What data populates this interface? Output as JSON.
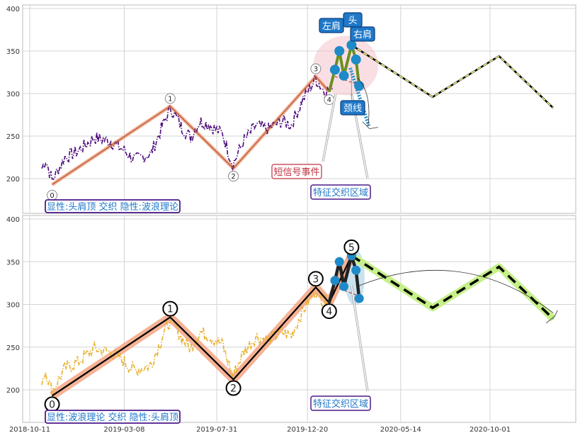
{
  "chart_data": [
    {
      "type": "line",
      "panel": "top",
      "title": "",
      "ylim": [
        165,
        405
      ],
      "yticks": [
        200,
        250,
        300,
        350,
        400
      ],
      "grid": true,
      "x_dates": [
        "2018-10-11",
        "2019-03-08",
        "2019-07-31",
        "2019-12-20",
        "2020-05-14",
        "2020-10-01"
      ],
      "x_tick_labels_shown": false,
      "price_series": {
        "color": "#4b0a7a",
        "style": "dash-dot",
        "anchors": [
          [
            "2018-10-30",
            212
          ],
          [
            "2018-11-05",
            222
          ],
          [
            "2018-11-15",
            198
          ],
          [
            "2018-12-05",
            225
          ],
          [
            "2018-12-25",
            232
          ],
          [
            "2019-01-20",
            248
          ],
          [
            "2019-02-15",
            244
          ],
          [
            "2019-03-10",
            232
          ],
          [
            "2019-03-25",
            222
          ],
          [
            "2019-04-20",
            230
          ],
          [
            "2019-05-05",
            258
          ],
          [
            "2019-05-20",
            283
          ],
          [
            "2019-06-05",
            262
          ],
          [
            "2019-06-20",
            248
          ],
          [
            "2019-07-05",
            268
          ],
          [
            "2019-07-20",
            263
          ],
          [
            "2019-08-10",
            252
          ],
          [
            "2019-08-25",
            216
          ],
          [
            "2019-09-10",
            243
          ],
          [
            "2019-09-30",
            262
          ],
          [
            "2019-10-20",
            258
          ],
          [
            "2019-11-10",
            268
          ],
          [
            "2019-11-25",
            263
          ],
          [
            "2019-12-10",
            288
          ],
          [
            "2020-01-02",
            318
          ],
          [
            "2020-01-15",
            303
          ],
          [
            "2020-01-28",
            305
          ]
        ]
      },
      "wave_series": {
        "color": "#b05a3c",
        "band_color": "#f4a582",
        "points": [
          {
            "date": "2018-11-15",
            "value": 193,
            "label": "0"
          },
          {
            "date": "2019-05-19",
            "value": 285,
            "label": "1"
          },
          {
            "date": "2019-08-26",
            "value": 212,
            "label": "2"
          },
          {
            "date": "2020-01-02",
            "value": 320,
            "label": "3"
          },
          {
            "date": "2020-01-23",
            "value": 302,
            "label": "4"
          }
        ]
      },
      "pattern_dots": [
        [
          "2020-02-01",
          328
        ],
        [
          "2020-02-08",
          350
        ],
        [
          "2020-02-15",
          321
        ],
        [
          "2020-02-27",
          357
        ],
        [
          "2020-03-05",
          340
        ],
        [
          "2020-03-10",
          309
        ]
      ],
      "pattern_line_color": "#6b8e23",
      "pattern_dot_color": "#1f8ac8",
      "pattern_highlight_color": "#f2b8c0",
      "forecast": {
        "color": "#ffff88",
        "style": "dashed",
        "points": [
          [
            "2020-02-27",
            357
          ],
          [
            "2020-07-03",
            296
          ],
          [
            "2020-10-15",
            344
          ],
          [
            "2021-01-08",
            283
          ]
        ]
      },
      "neckline_arrow": {
        "color": "#1f8ac8",
        "from": [
          "2020-02-25",
          330
        ],
        "to": [
          "2020-03-25",
          262
        ]
      },
      "annotations": {
        "left_shoulder": "左肩",
        "head": "头",
        "right_shoulder": "右肩",
        "neckline": "颈线",
        "short_signal": "短信号事件",
        "feature_zone": "特征交织区域",
        "legend_box": "显性:头肩顶 交织 隐性:波浪理论"
      }
    },
    {
      "type": "line",
      "panel": "bottom",
      "title": "",
      "ylim": [
        160,
        405
      ],
      "yticks": [
        200,
        250,
        300,
        350,
        400
      ],
      "grid": true,
      "x_dates": [
        "2018-10-11",
        "2019-03-08",
        "2019-07-31",
        "2019-12-20",
        "2020-05-14",
        "2020-10-01"
      ],
      "x_tick_labels_shown": true,
      "price_series": {
        "color": "#e8b02c",
        "style": "dash-dot",
        "anchors": [
          [
            "2018-10-30",
            212
          ],
          [
            "2018-11-05",
            222
          ],
          [
            "2018-11-15",
            198
          ],
          [
            "2018-12-05",
            225
          ],
          [
            "2018-12-25",
            232
          ],
          [
            "2019-01-20",
            248
          ],
          [
            "2019-02-15",
            244
          ],
          [
            "2019-03-10",
            232
          ],
          [
            "2019-03-25",
            222
          ],
          [
            "2019-04-20",
            230
          ],
          [
            "2019-05-05",
            258
          ],
          [
            "2019-05-20",
            283
          ],
          [
            "2019-06-05",
            262
          ],
          [
            "2019-06-20",
            248
          ],
          [
            "2019-07-05",
            268
          ],
          [
            "2019-07-20",
            263
          ],
          [
            "2019-08-10",
            252
          ],
          [
            "2019-08-25",
            216
          ],
          [
            "2019-09-10",
            243
          ],
          [
            "2019-09-30",
            262
          ],
          [
            "2019-10-20",
            258
          ],
          [
            "2019-11-10",
            268
          ],
          [
            "2019-11-25",
            263
          ],
          [
            "2019-12-10",
            288
          ],
          [
            "2020-01-02",
            318
          ],
          [
            "2020-01-15",
            303
          ],
          [
            "2020-01-28",
            305
          ]
        ]
      },
      "wave_series": {
        "color": "#000000",
        "band_color": "#f4a582",
        "points": [
          {
            "date": "2018-11-15",
            "value": 193,
            "label": "0"
          },
          {
            "date": "2019-05-19",
            "value": 285,
            "label": "1"
          },
          {
            "date": "2019-08-26",
            "value": 212,
            "label": "2"
          },
          {
            "date": "2020-01-02",
            "value": 320,
            "label": "3"
          },
          {
            "date": "2020-01-23",
            "value": 302,
            "label": "4"
          },
          {
            "date": "2020-02-27",
            "value": 357,
            "label": "5"
          }
        ]
      },
      "pattern_dots": [
        [
          "2020-02-01",
          328
        ],
        [
          "2020-02-08",
          350
        ],
        [
          "2020-02-15",
          321
        ],
        [
          "2020-02-27",
          357
        ],
        [
          "2020-03-05",
          340
        ],
        [
          "2020-03-10",
          307
        ]
      ],
      "pattern_line_color": "#222222",
      "pattern_dot_color": "#1f8ac8",
      "pattern_highlight_color": "#a6cee3",
      "forecast": {
        "color": "#000000",
        "band_color": "#c6f08a",
        "style": "dashed",
        "points": [
          [
            "2020-02-27",
            357
          ],
          [
            "2020-07-03",
            296
          ],
          [
            "2020-10-15",
            344
          ],
          [
            "2021-01-08",
            283
          ]
        ]
      },
      "annotations": {
        "feature_zone": "特征交织区域",
        "legend_box": "显性:波浪理论 交织 隐性:头肩顶"
      }
    }
  ]
}
